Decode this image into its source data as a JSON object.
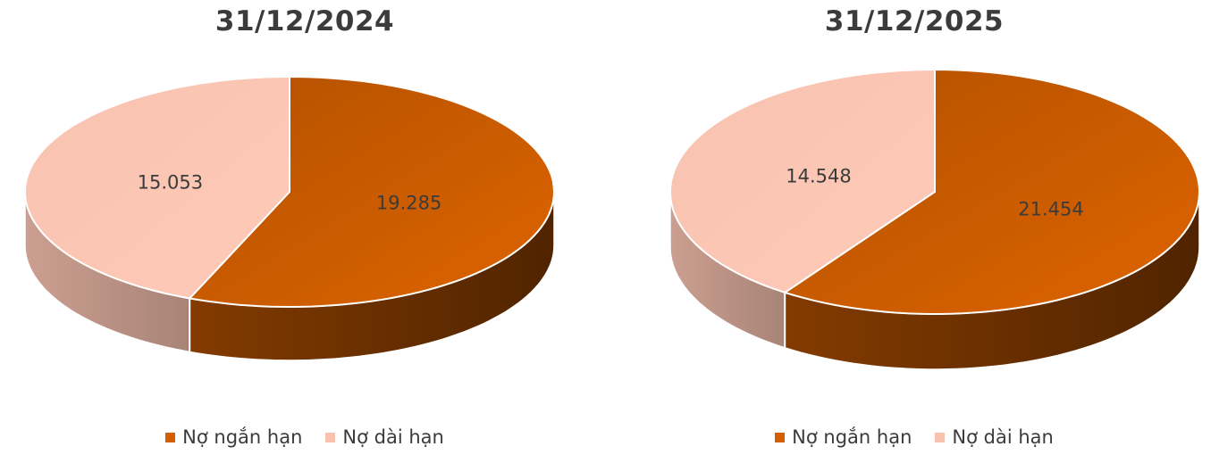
{
  "legend": {
    "short_term": "Nợ ngắn hạn",
    "long_term": "Nợ dài hạn"
  },
  "colors": {
    "short_term": "#D35F00",
    "long_term": "#F7C2B0"
  },
  "chart_data": [
    {
      "type": "pie",
      "title": "31/12/2024",
      "categories": [
        "Nợ ngắn hạn",
        "Nợ dài hạn"
      ],
      "values": [
        19285,
        15053
      ],
      "labels": [
        "19.285",
        "15.053"
      ],
      "legend_position": "bottom",
      "style": "3d"
    },
    {
      "type": "pie",
      "title": "31/12/2025",
      "categories": [
        "Nợ ngắn hạn",
        "Nợ dài hạn"
      ],
      "values": [
        21454,
        14548
      ],
      "labels": [
        "21.454",
        "14.548"
      ],
      "legend_position": "bottom",
      "style": "3d"
    }
  ]
}
